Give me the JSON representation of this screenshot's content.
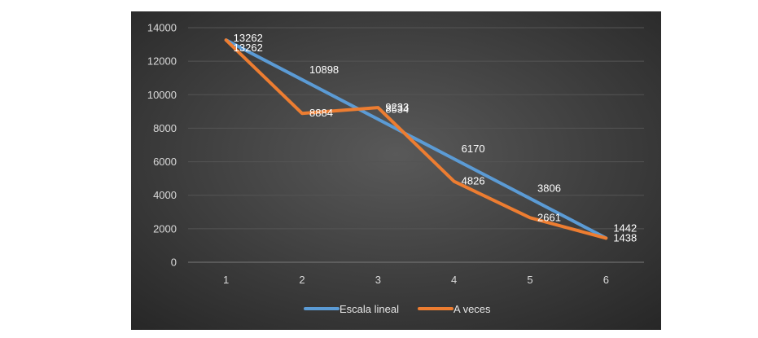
{
  "chart_data": {
    "type": "line",
    "x": [
      1,
      2,
      3,
      4,
      5,
      6
    ],
    "series": [
      {
        "name": "Escala lineal",
        "color": "#5b9bd5",
        "values": [
          13262,
          10898,
          8534,
          6170,
          3806,
          1442
        ]
      },
      {
        "name": "A veces",
        "color": "#ed7d31",
        "values": [
          13262,
          8884,
          9233,
          4826,
          2661,
          1438
        ]
      }
    ],
    "data_labels": {
      "Escala lineal": [
        "13262",
        "10898",
        "8534",
        "6170",
        "3806",
        "1442"
      ],
      "A veces": [
        "13262",
        "8884",
        "9233",
        "4826",
        "2661",
        "1438"
      ]
    },
    "yticks": [
      0,
      2000,
      4000,
      6000,
      8000,
      10000,
      12000,
      14000
    ],
    "ylim": [
      0,
      14000
    ],
    "xticks": [
      1,
      2,
      3,
      4,
      5,
      6
    ],
    "title": "",
    "xlabel": "",
    "ylabel": "",
    "grid": true,
    "legend_position": "bottom",
    "background": "dark"
  }
}
